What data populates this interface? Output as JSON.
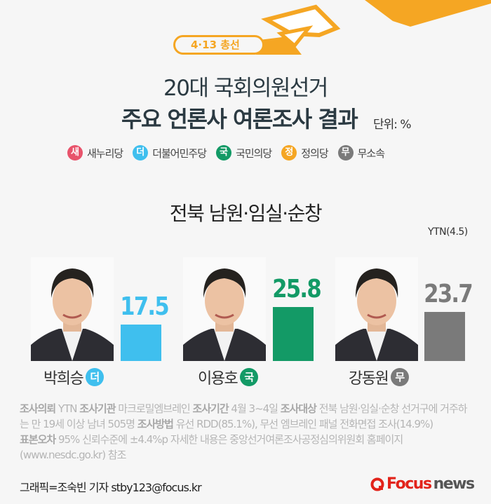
{
  "header": {
    "badge": "4·13 총선",
    "title_line1": "20대 국회의원선거",
    "title_line2": "주요 언론사 여론조사 결과",
    "unit": "단위: %"
  },
  "legend": [
    {
      "char": "새",
      "label": "새누리당",
      "color": "#e8536b"
    },
    {
      "char": "더",
      "label": "더불어민주당",
      "color": "#3fbfee"
    },
    {
      "char": "국",
      "label": "국민의당",
      "color": "#139a66"
    },
    {
      "char": "정",
      "label": "정의당",
      "color": "#f5a623"
    },
    {
      "char": "무",
      "label": "무소속",
      "color": "#7a7a7a"
    }
  ],
  "region": "전북 남원·임실·순창",
  "source": "YTN(4.5)",
  "chart_data": {
    "type": "bar",
    "categories": [
      "박희승",
      "이용호",
      "강동원"
    ],
    "values": [
      17.5,
      25.8,
      23.7
    ],
    "value_labels": [
      "17.5",
      "25.8",
      "23.7"
    ],
    "parties": [
      "더",
      "국",
      "무"
    ],
    "colors": [
      "#3fbfee",
      "#139a66",
      "#7a7a7a"
    ],
    "ylim": [
      0,
      30
    ]
  },
  "notes": {
    "l1_k1": "조사의뢰",
    "l1_v1": " YTN  ",
    "l1_k2": "조사기관",
    "l1_v2": " 마크로밀엠브레인 ",
    "l1_k3": "조사기간",
    "l1_v3": " 4월 3~4일 ",
    "l1_k4": "조사대상",
    "l1_v4": " 전북 남원·임실·순창 선거구에 거주하는 만 19세 이상 남녀 505명 ",
    "l2_k1": "조사방법",
    "l2_v1": " 유선 RDD(85.1%), 무선 엠브레인 패널 전화면접 조사(14.9%) ",
    "l3_k1": "표본오차",
    "l3_v1": " 95% 신뢰수준에 ±4.4%p   자세한 내용은 중앙선거여론조사공정심의위원회 홈페이지 (www.nesdc.go.kr) 참조"
  },
  "footer": {
    "credit": "그래픽=조숙빈 기자 stby123@focus.kr",
    "logo_a": "Focus",
    "logo_b": "news"
  }
}
